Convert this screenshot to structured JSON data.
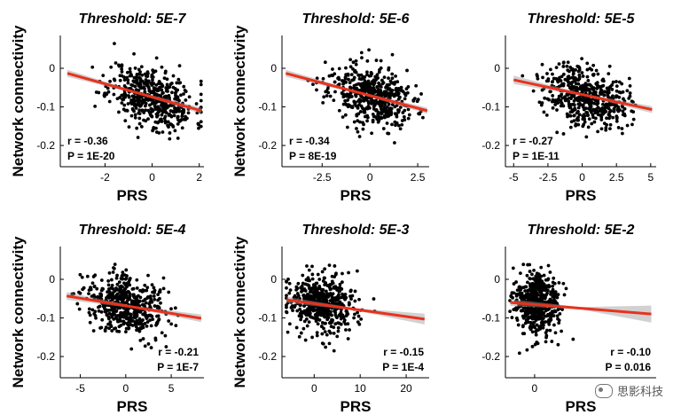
{
  "chart_data": [
    {
      "type": "scatter",
      "title": "Threshold: 5E-7",
      "xlabel": "PRS",
      "ylabel": "Network connectivity",
      "xlim": [
        -3.9,
        2.2
      ],
      "ylim": [
        -0.255,
        0.085
      ],
      "xticks": [
        -2,
        0,
        2
      ],
      "yticks": [
        0,
        -0.1,
        -0.2
      ],
      "ytick_labels": [
        "0",
        "-0.1",
        "-0.2"
      ],
      "stats": {
        "r": "r = -0.36",
        "p": "P = 1E-20"
      },
      "fit": {
        "x": [
          -3.6,
          2.1
        ],
        "y": [
          -0.013,
          -0.11
        ],
        "ci_half": [
          0.009,
          0.003,
          0.008
        ]
      },
      "points": {
        "n": 500,
        "center_x": 0.0,
        "sd_x": 0.9,
        "center_y": -0.07,
        "sd_y": 0.045,
        "seed": 11
      },
      "line_color": "#e8321e",
      "point_color": "#000000"
    },
    {
      "type": "scatter",
      "title": "Threshold: 5E-6",
      "xlabel": "PRS",
      "ylabel": "Network connectivity",
      "xlim": [
        -4.6,
        3.1
      ],
      "ylim": [
        -0.255,
        0.085
      ],
      "xticks": [
        -2.5,
        0,
        2.5
      ],
      "yticks": [
        0,
        -0.1,
        -0.2
      ],
      "ytick_labels": [
        "0",
        "-0.1",
        "-0.2"
      ],
      "stats": {
        "r": "r = -0.34",
        "p": "P = 8E-19"
      },
      "fit": {
        "x": [
          -4.4,
          3.0
        ],
        "y": [
          -0.013,
          -0.11
        ],
        "ci_half": [
          0.009,
          0.003,
          0.008
        ]
      },
      "points": {
        "n": 500,
        "center_x": 0.0,
        "sd_x": 1.1,
        "center_y": -0.07,
        "sd_y": 0.045,
        "seed": 23
      },
      "line_color": "#e8321e",
      "point_color": "#000000"
    },
    {
      "type": "scatter",
      "title": "Threshold: 5E-5",
      "xlabel": "PRS",
      "ylabel": "",
      "xlim": [
        -5.6,
        5.4
      ],
      "ylim": [
        -0.255,
        0.085
      ],
      "xticks": [
        -5,
        -2.5,
        0,
        2.5,
        5
      ],
      "yticks": [
        0,
        -0.1,
        -0.2
      ],
      "ytick_labels": [
        "0",
        "-0.1",
        "-0.2"
      ],
      "stats": {
        "r": "r = -0.27",
        "p": "P = 1E-11"
      },
      "fit": {
        "x": [
          -5.0,
          5.1
        ],
        "y": [
          -0.03,
          -0.107
        ],
        "ci_half": [
          0.011,
          0.003,
          0.009
        ]
      },
      "points": {
        "n": 500,
        "center_x": 0.3,
        "sd_x": 1.5,
        "center_y": -0.07,
        "sd_y": 0.045,
        "seed": 37
      },
      "line_color": "#e8321e",
      "point_color": "#000000"
    },
    {
      "type": "scatter",
      "title": "Threshold: 5E-4",
      "xlabel": "PRS",
      "ylabel": "Network connectivity",
      "xlim": [
        -7.2,
        8.6
      ],
      "ylim": [
        -0.255,
        0.085
      ],
      "xticks": [
        -5,
        0,
        5
      ],
      "yticks": [
        0,
        -0.1,
        -0.2
      ],
      "ytick_labels": [
        "0",
        "-0.1",
        "-0.2"
      ],
      "stats": {
        "r": "r = -0.21",
        "p": "P = 1E-7"
      },
      "fit": {
        "x": [
          -6.5,
          8.3
        ],
        "y": [
          -0.043,
          -0.101
        ],
        "ci_half": [
          0.01,
          0.003,
          0.01
        ]
      },
      "points": {
        "n": 500,
        "center_x": 0.0,
        "sd_x": 2.2,
        "center_y": -0.07,
        "sd_y": 0.045,
        "seed": 41
      },
      "line_color": "#e8321e",
      "point_color": "#000000"
    },
    {
      "type": "scatter",
      "title": "Threshold: 5E-3",
      "xlabel": "PRS",
      "ylabel": "Network connectivity",
      "xlim": [
        -7.0,
        25.0
      ],
      "ylim": [
        -0.255,
        0.085
      ],
      "xticks": [
        0,
        10,
        20
      ],
      "yticks": [
        0,
        -0.1,
        -0.2
      ],
      "ytick_labels": [
        "0",
        "-0.1",
        "-0.2"
      ],
      "stats": {
        "r": "r = -0.15",
        "p": "P = 1E-4"
      },
      "fit": {
        "x": [
          -6.0,
          24.0
        ],
        "y": [
          -0.053,
          -0.103
        ],
        "ci_half": [
          0.008,
          0.003,
          0.014
        ]
      },
      "points": {
        "n": 500,
        "center_x": 2.0,
        "sd_x": 4.0,
        "center_y": -0.072,
        "sd_y": 0.045,
        "seed": 53
      },
      "line_color": "#e8321e",
      "point_color": "#000000"
    },
    {
      "type": "scatter",
      "title": "Threshold: 5E-2",
      "xlabel": "PRS",
      "ylabel": "",
      "xlim": [
        -12.0,
        50.0
      ],
      "ylim": [
        -0.255,
        0.085
      ],
      "xticks": [
        0
      ],
      "yticks": [
        0,
        -0.1,
        -0.2
      ],
      "ytick_labels": [
        "0",
        "-0.1",
        "-0.2"
      ],
      "stats": {
        "r": "r = -0.10",
        "p": "P = 0.016"
      },
      "fit": {
        "x": [
          -10.0,
          48.0
        ],
        "y": [
          -0.06,
          -0.09
        ],
        "ci_half": [
          0.009,
          0.003,
          0.022
        ]
      },
      "points": {
        "n": 500,
        "center_x": 0.5,
        "sd_x": 4.5,
        "center_y": -0.072,
        "sd_y": 0.045,
        "seed": 67
      },
      "line_color": "#e8321e",
      "point_color": "#000000"
    }
  ],
  "watermark": {
    "text": "思影科技",
    "icon": "wechat-icon"
  }
}
